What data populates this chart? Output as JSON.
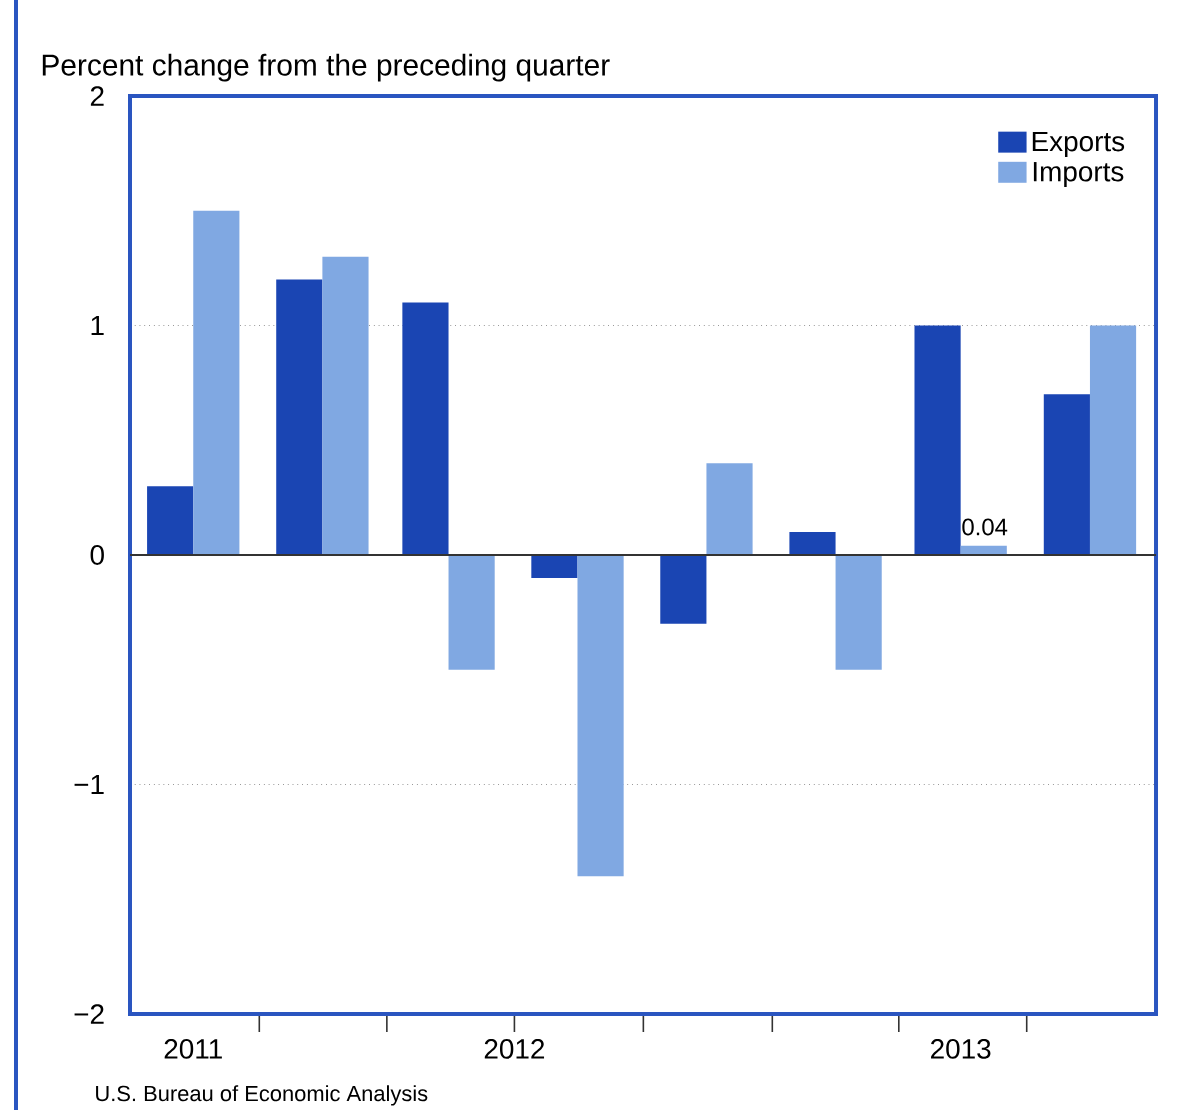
{
  "chart_data": {
    "type": "bar",
    "ylabel": "Percent change from the preceding quarter",
    "x": [
      "2011-11-15",
      "2012-02-15",
      "2012-05-15",
      "2012-08-15",
      "2012-11-15",
      "2013-02-15",
      "2013-05-15",
      "2013-08-15"
    ],
    "xlim": [
      "2011-10-01",
      "2013-10-01"
    ],
    "xticks": [
      {
        "value": "2011-11-15",
        "label": "2011"
      },
      {
        "value": "2012-07-01",
        "label": "2012"
      },
      {
        "value": "2013-05-15",
        "label": "2013"
      },
      {
        "value": "2012-01-01",
        "label": null
      },
      {
        "value": "2012-04-01",
        "label": null
      },
      {
        "value": "2012-07-01",
        "label": null
      },
      {
        "value": "2012-10-01",
        "label": null
      },
      {
        "value": "2013-01-01",
        "label": null
      },
      {
        "value": "2013-04-01",
        "label": null
      },
      {
        "value": "2013-07-01",
        "label": null
      }
    ],
    "ylim": [
      -2,
      2
    ],
    "yticks": [
      {
        "value": -2,
        "label": "−2"
      },
      {
        "value": -1,
        "label": "−1"
      },
      0,
      1,
      2
    ],
    "grid": "y",
    "legend": "top right",
    "series": [
      {
        "name": "Exports",
        "color": "#1a45b3",
        "values": [
          0.3,
          1.2,
          1.1,
          -0.1,
          -0.3,
          0.1,
          1.0,
          0.7
        ]
      },
      {
        "name": "Imports",
        "color": "#80a8e2",
        "values": [
          1.5,
          1.3,
          -0.5,
          -1.4,
          0.4,
          -0.5,
          0.04,
          1.0
        ],
        "value_labels": [
          null,
          null,
          null,
          null,
          null,
          null,
          "0.04",
          null
        ]
      }
    ],
    "annotations": [
      "U.S. Bureau of Economic Analysis"
    ]
  }
}
